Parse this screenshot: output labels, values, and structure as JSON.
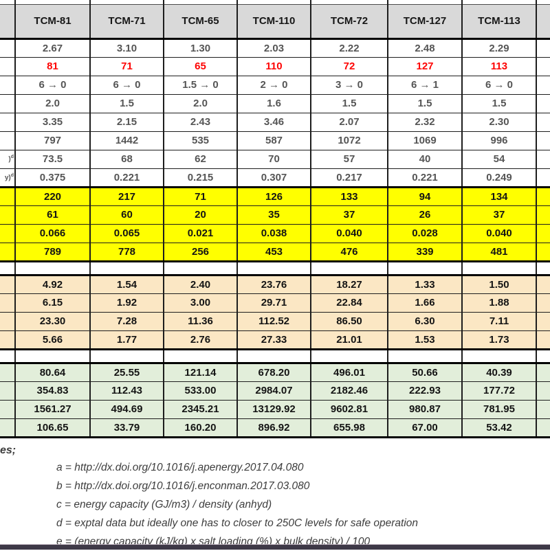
{
  "table": {
    "columns": [
      "TCM-81",
      "TCM-71",
      "TCM-65",
      "TCM-110",
      "TCM-72",
      "TCM-127",
      "TCM-113"
    ],
    "rows": [
      {
        "section": "white",
        "style": "plain",
        "values": [
          "2.67",
          "3.10",
          "1.30",
          "2.03",
          "2.22",
          "2.48",
          "2.29"
        ]
      },
      {
        "section": "white",
        "style": "red",
        "values": [
          "81",
          "71",
          "65",
          "110",
          "72",
          "127",
          "113"
        ]
      },
      {
        "section": "white",
        "style": "plain",
        "values": [
          "6 → 0",
          "6 → 0",
          "1.5 → 0",
          "2 → 0",
          "3 → 0",
          "6 → 1",
          "6 → 0"
        ]
      },
      {
        "section": "white",
        "style": "plain",
        "values": [
          "2.0",
          "1.5",
          "2.0",
          "1.6",
          "1.5",
          "1.5",
          "1.5"
        ]
      },
      {
        "section": "white",
        "style": "plain",
        "values": [
          "3.35",
          "2.15",
          "2.43",
          "3.46",
          "2.07",
          "2.32",
          "2.30"
        ]
      },
      {
        "section": "white",
        "style": "plain",
        "values": [
          "797",
          "1442",
          "535",
          "587",
          "1072",
          "1069",
          "996"
        ]
      },
      {
        "section": "white",
        "style": "plain",
        "stub": ")",
        "stub_sup": "d",
        "values": [
          "73.5",
          "68",
          "62",
          "70",
          "57",
          "40",
          "54"
        ]
      },
      {
        "section": "white",
        "style": "plain",
        "stub": "y)",
        "stub_sup": "d",
        "values": [
          "0.375",
          "0.221",
          "0.215",
          "0.307",
          "0.217",
          "0.221",
          "0.249"
        ]
      },
      {
        "section": "yellow",
        "style": "plain",
        "values": [
          "220",
          "217",
          "71",
          "126",
          "133",
          "94",
          "134"
        ]
      },
      {
        "section": "yellow",
        "style": "plain",
        "values": [
          "61",
          "60",
          "20",
          "35",
          "37",
          "26",
          "37"
        ]
      },
      {
        "section": "yellow",
        "style": "plain",
        "values": [
          "0.066",
          "0.065",
          "0.021",
          "0.038",
          "0.040",
          "0.028",
          "0.040"
        ]
      },
      {
        "section": "yellow",
        "style": "plain",
        "values": [
          "789",
          "778",
          "256",
          "453",
          "476",
          "339",
          "481"
        ]
      },
      {
        "section": "spacer",
        "style": "plain"
      },
      {
        "section": "tan",
        "style": "plain",
        "values": [
          "4.92",
          "1.54",
          "2.40",
          "23.76",
          "18.27",
          "1.33",
          "1.50"
        ]
      },
      {
        "section": "tan",
        "style": "plain",
        "values": [
          "6.15",
          "1.92",
          "3.00",
          "29.71",
          "22.84",
          "1.66",
          "1.88"
        ]
      },
      {
        "section": "tan",
        "style": "plain",
        "values": [
          "23.30",
          "7.28",
          "11.36",
          "112.52",
          "86.50",
          "6.30",
          "7.11"
        ]
      },
      {
        "section": "tan",
        "style": "plain",
        "values": [
          "5.66",
          "1.77",
          "2.76",
          "27.33",
          "21.01",
          "1.53",
          "1.73"
        ]
      },
      {
        "section": "spacer",
        "style": "plain"
      },
      {
        "section": "green",
        "style": "plain",
        "values": [
          "80.64",
          "25.55",
          "121.14",
          "678.20",
          "496.01",
          "50.66",
          "40.39"
        ]
      },
      {
        "section": "green",
        "style": "plain",
        "values": [
          "354.83",
          "112.43",
          "533.00",
          "2984.07",
          "2182.46",
          "222.93",
          "177.72"
        ]
      },
      {
        "section": "green",
        "style": "plain",
        "values": [
          "1561.27",
          "494.69",
          "2345.21",
          "13129.92",
          "9602.81",
          "980.87",
          "781.95"
        ]
      },
      {
        "section": "green",
        "style": "plain",
        "values": [
          "106.65",
          "33.79",
          "160.20",
          "896.92",
          "655.98",
          "67.00",
          "53.42"
        ]
      }
    ]
  },
  "notes": {
    "title_fragment": "es;",
    "items": [
      "a = http://dx.doi.org/10.1016/j.apenergy.2017.04.080",
      "b = http://dx.doi.org/10.1016/j.enconman.2017.03.080",
      "c = energy capacity (GJ/m3) / density (anhyd)",
      "d = exptal data but ideally one has to closer to 250C levels for safe operation",
      "e = (energy capacity (kJ/kg) x salt loading (%) x bulk density) / 100"
    ]
  },
  "colors": {
    "header_bg": "#d9d9d9",
    "highlight_red": "#ff0000",
    "section_yellow": "#ffff00",
    "section_tan": "#fbe7c4",
    "section_green": "#e2eeda",
    "border": "#1d1d1d",
    "bottom_bar": "#3e3947"
  }
}
